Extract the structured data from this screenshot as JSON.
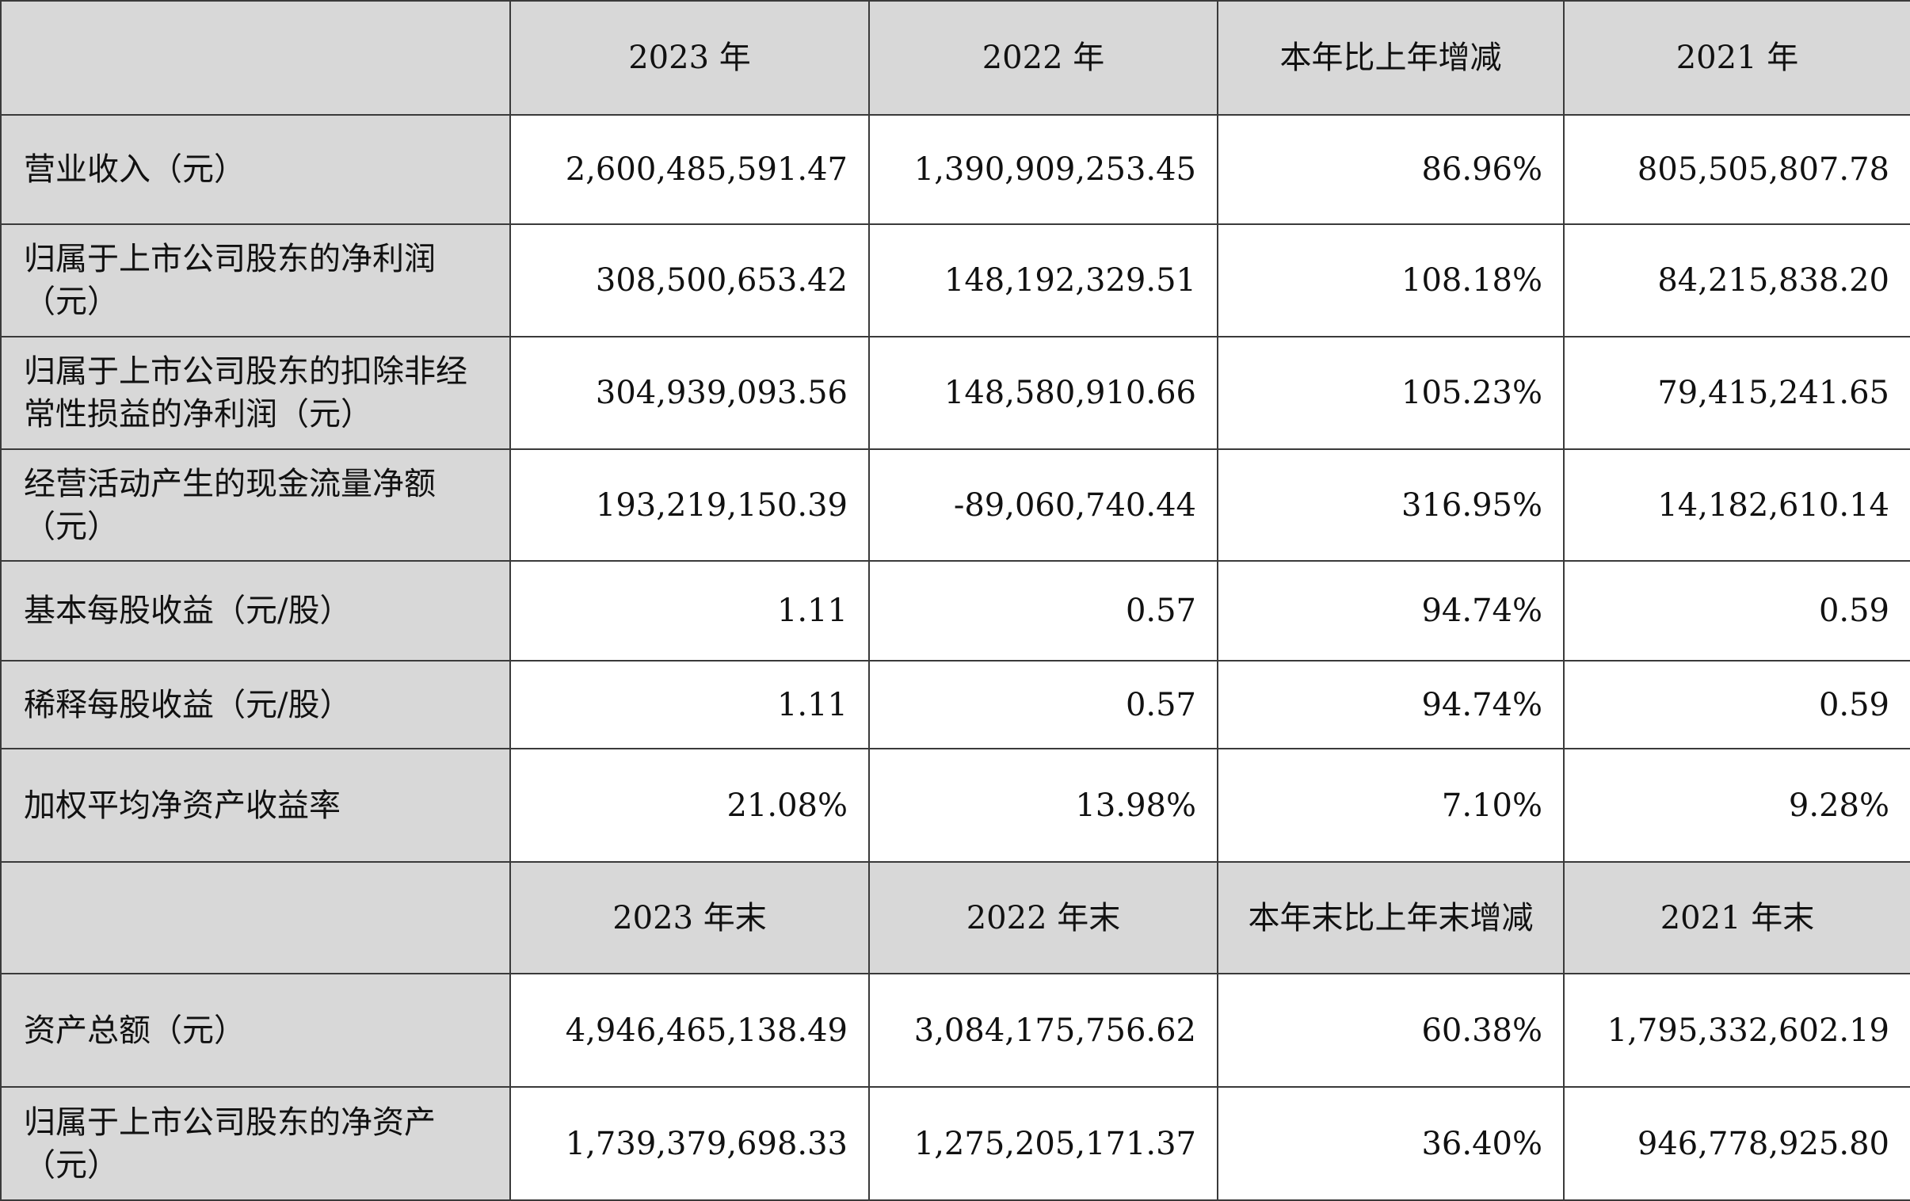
{
  "section1": {
    "headers": [
      "2023 年",
      "2022 年",
      "本年比上年增减",
      "2021 年"
    ],
    "rows": [
      {
        "label": "营业收入（元）",
        "values": [
          "2,600,485,591.47",
          "1,390,909,253.45",
          "86.96%",
          "805,505,807.78"
        ]
      },
      {
        "label": "归属于上市公司股东的净利润（元）",
        "values": [
          "308,500,653.42",
          "148,192,329.51",
          "108.18%",
          "84,215,838.20"
        ]
      },
      {
        "label": "归属于上市公司股东的扣除非经常性损益的净利润（元）",
        "values": [
          "304,939,093.56",
          "148,580,910.66",
          "105.23%",
          "79,415,241.65"
        ]
      },
      {
        "label": "经营活动产生的现金流量净额（元）",
        "values": [
          "193,219,150.39",
          "-89,060,740.44",
          "316.95%",
          "14,182,610.14"
        ]
      },
      {
        "label": "基本每股收益（元/股）",
        "values": [
          "1.11",
          "0.57",
          "94.74%",
          "0.59"
        ]
      },
      {
        "label": "稀释每股收益（元/股）",
        "values": [
          "1.11",
          "0.57",
          "94.74%",
          "0.59"
        ]
      },
      {
        "label": "加权平均净资产收益率",
        "values": [
          "21.08%",
          "13.98%",
          "7.10%",
          "9.28%"
        ]
      }
    ]
  },
  "section2": {
    "headers": [
      "2023 年末",
      "2022 年末",
      "本年末比上年末增减",
      "2021 年末"
    ],
    "rows": [
      {
        "label": "资产总额（元）",
        "values": [
          "4,946,465,138.49",
          "3,084,175,756.62",
          "60.38%",
          "1,795,332,602.19"
        ]
      },
      {
        "label": "归属于上市公司股东的净资产（元）",
        "values": [
          "1,739,379,698.33",
          "1,275,205,171.37",
          "36.40%",
          "946,778,925.80"
        ]
      }
    ]
  }
}
